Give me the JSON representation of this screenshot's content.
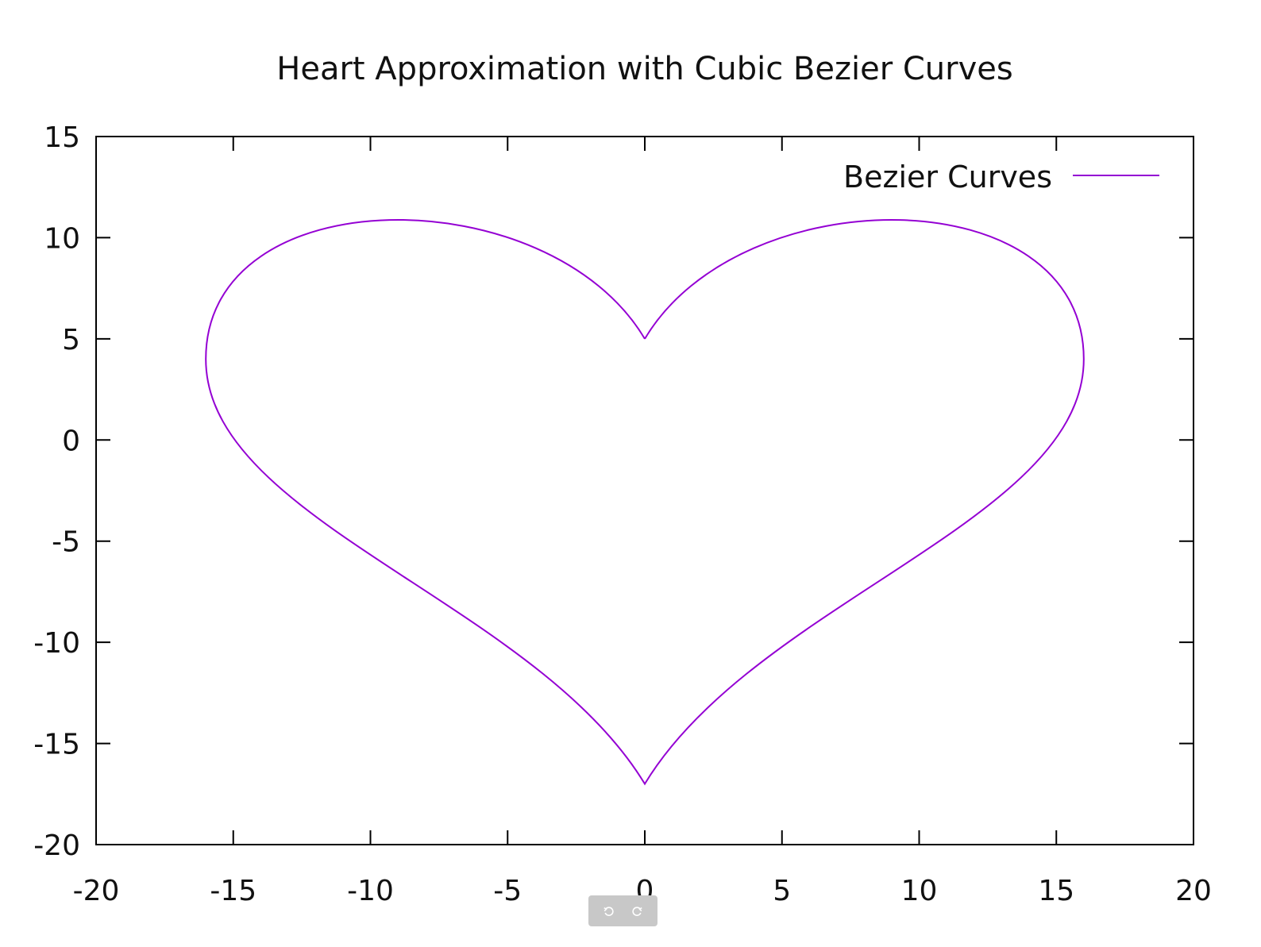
{
  "chart_data": {
    "type": "line",
    "title": "Heart Approximation with Cubic Bezier Curves",
    "xlabel": "",
    "ylabel": "",
    "xlim": [
      -20,
      20
    ],
    "ylim": [
      -20,
      15
    ],
    "xticks": [
      -20,
      -15,
      -10,
      -5,
      0,
      5,
      10,
      15,
      20
    ],
    "yticks": [
      15,
      10,
      5,
      0,
      -5,
      -10,
      -15,
      -20
    ],
    "grid": false,
    "legend": "top-right",
    "series": [
      {
        "name": "Bezier Curves",
        "color": "#9400d3",
        "segments": [
          [
            [
              0,
              5
            ],
            [
              -3.5,
              13
            ],
            [
              -16,
              13
            ],
            [
              -16,
              4
            ]
          ],
          [
            [
              -16,
              4
            ],
            [
              -16,
              -4
            ],
            [
              -4,
              -8
            ],
            [
              0,
              -17
            ]
          ],
          [
            [
              0,
              -17
            ],
            [
              4,
              -8
            ],
            [
              16,
              -4
            ],
            [
              16,
              4
            ]
          ],
          [
            [
              16,
              4
            ],
            [
              16,
              13
            ],
            [
              3.5,
              13
            ],
            [
              0,
              5
            ]
          ]
        ]
      }
    ]
  },
  "toolbar": {
    "icons": [
      "rotate-left-icon",
      "rotate-right-icon"
    ]
  }
}
